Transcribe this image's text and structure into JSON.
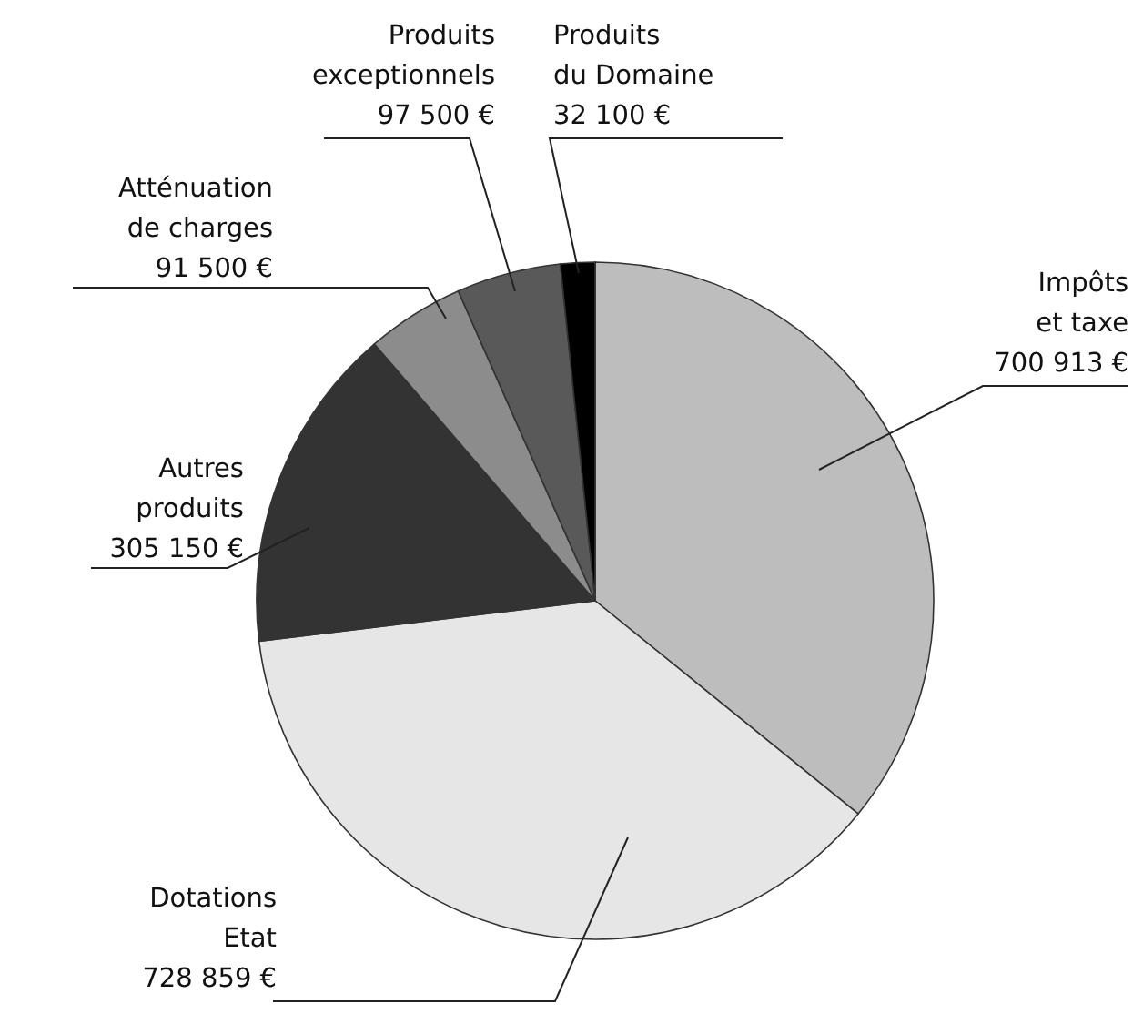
{
  "chart_data": {
    "type": "pie",
    "categories": [
      "Impôts et taxe",
      "Dotations Etat",
      "Autres produits",
      "Atténuation de charges",
      "Produits exceptionnels",
      "Produits du Domaine"
    ],
    "values": [
      700913,
      728859,
      305150,
      91500,
      97500,
      32100
    ],
    "colors": [
      "#bdbdbd",
      "#e6e6e6",
      "#333333",
      "#8c8c8c",
      "#595959",
      "#000000"
    ],
    "value_labels": [
      "700 913 €",
      "728 859 €",
      "305 150 €",
      "91 500 €",
      "97 500 €",
      "32 100 €"
    ]
  }
}
